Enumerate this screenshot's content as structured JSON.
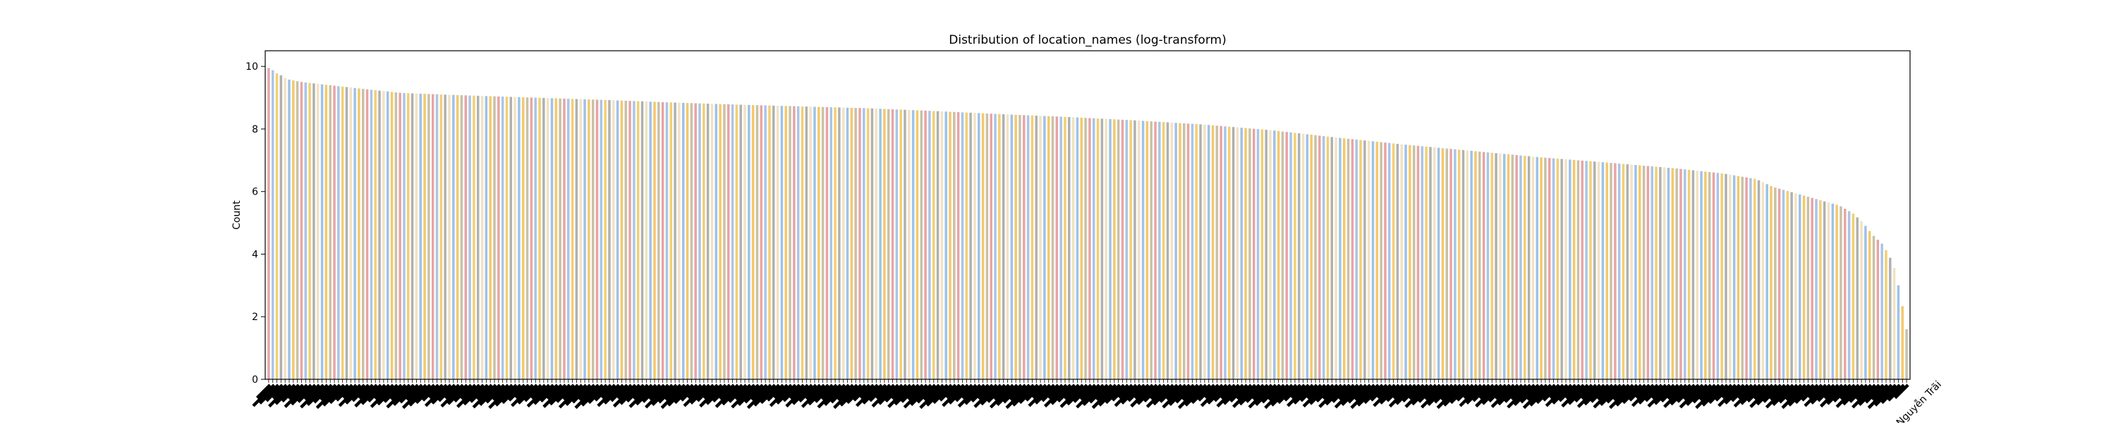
{
  "chart_data": {
    "type": "bar",
    "title": "Distribution of location_names (log-transform)",
    "xlabel": "",
    "ylabel": "Count",
    "ylim": [
      0,
      10.5
    ],
    "yticks": [
      0,
      2,
      4,
      6,
      8,
      10
    ],
    "grid": false,
    "legend": "none",
    "last_category_label": "Nguyễn Trãi",
    "bar_colors": [
      "#e8a4a4",
      "#a9c5e6",
      "#f2cf73",
      "#b0b0b0",
      "#f1e2c2",
      "#9ec2e8",
      "#f4c86b",
      "#c9c1a6"
    ],
    "categories_visible": false,
    "n_bars": 400,
    "profile_knots": [
      [
        0,
        9.95
      ],
      [
        1,
        9.9
      ],
      [
        2,
        9.8
      ],
      [
        3,
        9.75
      ],
      [
        4,
        9.7
      ],
      [
        5,
        9.62
      ],
      [
        6,
        9.58
      ],
      [
        10,
        9.5
      ],
      [
        20,
        9.38
      ],
      [
        30,
        9.26
      ],
      [
        40,
        9.15
      ],
      [
        60,
        9.07
      ],
      [
        80,
        9.0
      ],
      [
        100,
        8.93
      ],
      [
        120,
        8.85
      ],
      [
        140,
        8.78
      ],
      [
        160,
        8.72
      ],
      [
        180,
        8.66
      ],
      [
        200,
        8.57
      ],
      [
        220,
        8.47
      ],
      [
        240,
        8.38
      ],
      [
        260,
        8.27
      ],
      [
        280,
        8.14
      ],
      [
        300,
        7.96
      ],
      [
        320,
        7.72
      ],
      [
        340,
        7.5
      ],
      [
        360,
        7.3
      ],
      [
        380,
        7.1
      ],
      [
        400,
        6.93
      ],
      [
        420,
        6.75
      ],
      [
        435,
        6.58
      ],
      [
        445,
        6.4
      ],
      [
        450,
        6.15
      ],
      [
        455,
        6.0
      ],
      [
        460,
        5.85
      ],
      [
        465,
        5.7
      ],
      [
        470,
        5.55
      ],
      [
        474,
        5.3
      ],
      [
        477,
        5.0
      ],
      [
        480,
        4.6
      ],
      [
        483,
        4.3
      ],
      [
        486,
        3.7
      ],
      [
        488,
        2.8
      ],
      [
        490,
        1.6
      ]
    ]
  }
}
